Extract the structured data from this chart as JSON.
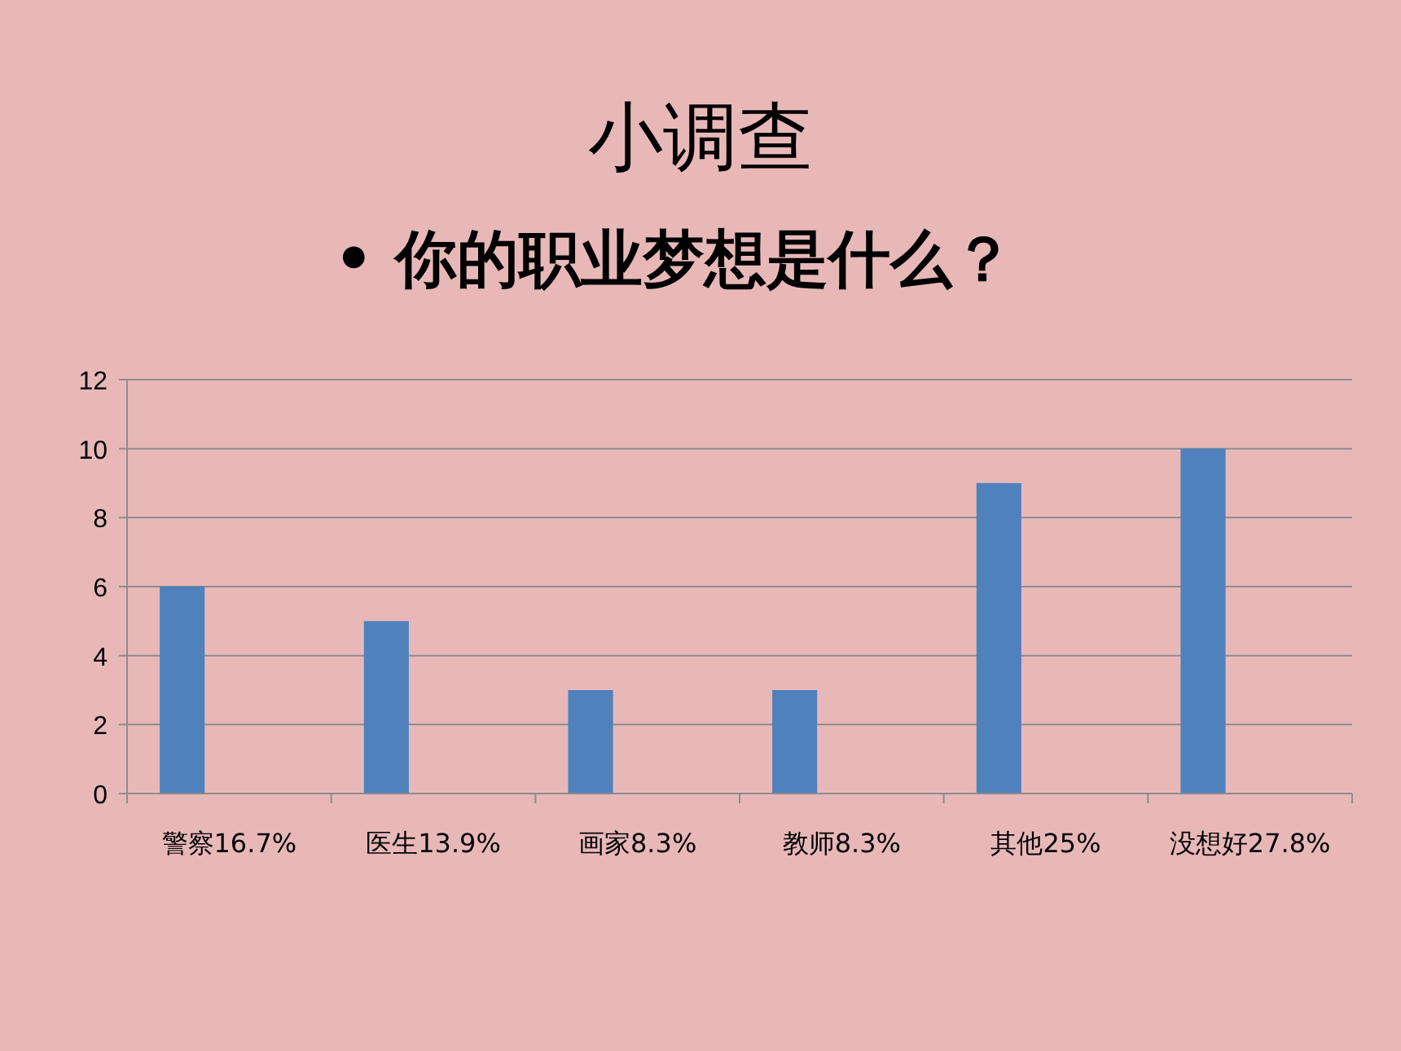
{
  "chart_data": {
    "type": "bar",
    "title": "小调查",
    "subtitle": "• 你的职业梦想是什么？",
    "categories": [
      "警察16.7%",
      "医生13.9%",
      "画家8.3%",
      "教师8.3%",
      "其他25%",
      "没想好27.8%"
    ],
    "values": [
      6,
      5,
      3,
      3,
      9,
      10
    ],
    "color": "#4f81bd",
    "ylim": [
      0,
      12
    ],
    "yticks": [
      0,
      2,
      4,
      6,
      8,
      10,
      12
    ],
    "grid": "y"
  }
}
